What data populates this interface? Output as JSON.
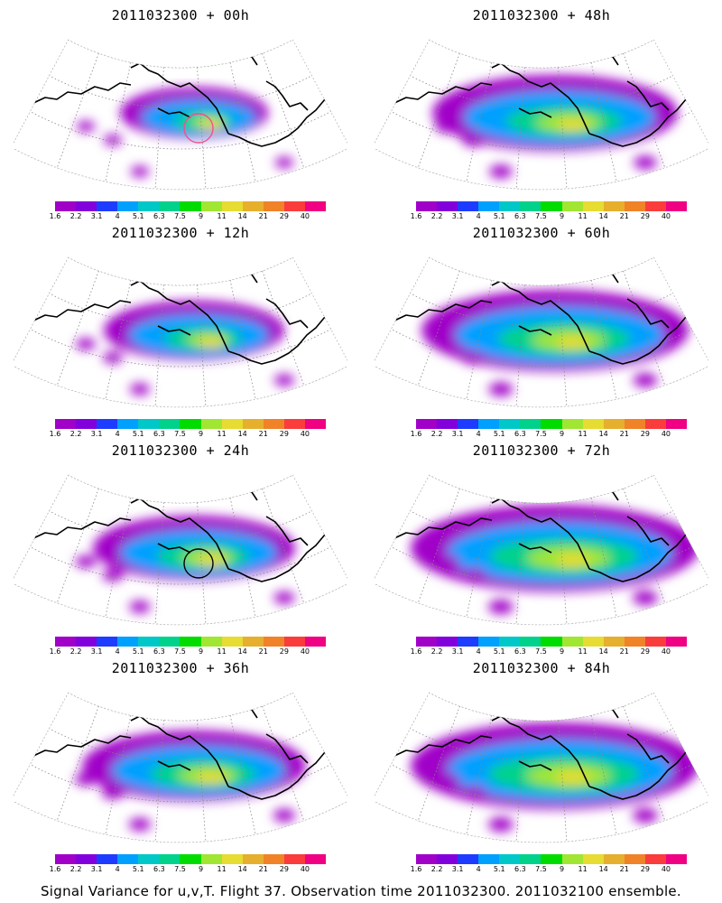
{
  "panels": [
    {
      "id": "p00",
      "title": "2011032300 + 00h",
      "intensity": 0.55,
      "spread": 0.35,
      "circle": true
    },
    {
      "id": "p48",
      "title": "2011032300 + 48h",
      "intensity": 0.8,
      "spread": 0.8,
      "circle": false
    },
    {
      "id": "p12",
      "title": "2011032300 + 12h",
      "intensity": 0.65,
      "spread": 0.5,
      "circle": false
    },
    {
      "id": "p60",
      "title": "2011032300 + 60h",
      "intensity": 0.85,
      "spread": 0.9,
      "circle": false
    },
    {
      "id": "p24",
      "title": "2011032300 + 24h",
      "intensity": 0.75,
      "spread": 0.6,
      "circle": true
    },
    {
      "id": "p72",
      "title": "2011032300 + 72h",
      "intensity": 0.9,
      "spread": 1.0,
      "circle": false
    },
    {
      "id": "p36",
      "title": "2011032300 + 36h",
      "intensity": 0.8,
      "spread": 0.7,
      "circle": false
    },
    {
      "id": "p84",
      "title": "2011032300 + 84h",
      "intensity": 0.92,
      "spread": 1.0,
      "circle": false
    }
  ],
  "colorbar": {
    "labels": [
      "1.6",
      "2.2",
      "3.1",
      "4",
      "5.1",
      "6.3",
      "7.5",
      "9",
      "11",
      "14",
      "21",
      "29",
      "40"
    ],
    "colors": [
      "#a000c8",
      "#8200dc",
      "#1e3cff",
      "#00a0ff",
      "#00c8c8",
      "#00d28c",
      "#00dc00",
      "#a0e632",
      "#e6dc32",
      "#e6af2d",
      "#f08228",
      "#fa3c3c",
      "#f00082"
    ]
  },
  "footer": "Signal Variance for u,v,T. Flight 37. Observation time 2011032300. 2011032100 ensemble."
}
